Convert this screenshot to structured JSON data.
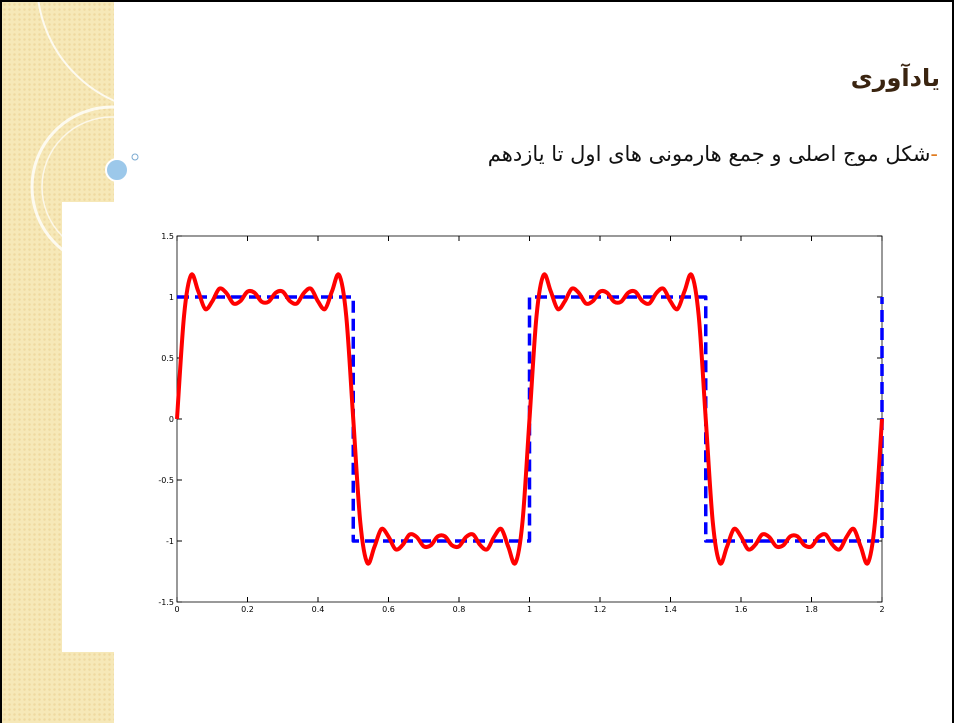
{
  "slide": {
    "title": "یادآوری",
    "bullet": "-",
    "text": "شکل موج اصلی و جمع هارمونی های اول تا یازدهم"
  },
  "chart_data": {
    "type": "line",
    "xlim": [
      0,
      2
    ],
    "ylim": [
      -1.5,
      1.5
    ],
    "xticks": [
      0,
      0.2,
      0.4,
      0.6,
      0.8,
      1,
      1.2,
      1.4,
      1.6,
      1.8,
      2
    ],
    "yticks": [
      -1.5,
      -1,
      -0.5,
      0,
      0.5,
      1,
      1.5
    ],
    "series": [
      {
        "color": "#0000ff",
        "linestyle": "dashed",
        "x": [
          0,
          0.5,
          0.5,
          1,
          1,
          1.5,
          1.5,
          2,
          2
        ],
        "values": [
          1,
          1,
          -1,
          -1,
          1,
          1,
          -1,
          -1,
          1
        ]
      },
      {
        "color": "#ff0000",
        "linestyle": "solid",
        "x": [
          0,
          0.02,
          0.04,
          0.06,
          0.08,
          0.1,
          0.12,
          0.14,
          0.16,
          0.18,
          0.2,
          0.22,
          0.24,
          0.26,
          0.28,
          0.3,
          0.32,
          0.34,
          0.36,
          0.38,
          0.4,
          0.42,
          0.44,
          0.46,
          0.48,
          0.5,
          0.52,
          0.54,
          0.56,
          0.58,
          0.6,
          0.62,
          0.64,
          0.66,
          0.68,
          0.7,
          0.72,
          0.74,
          0.76,
          0.78,
          0.8,
          0.82,
          0.84,
          0.86,
          0.88,
          0.9,
          0.92,
          0.94,
          0.96,
          0.98,
          1,
          1.02,
          1.04,
          1.06,
          1.08,
          1.1,
          1.12,
          1.14,
          1.16,
          1.18,
          1.2,
          1.22,
          1.24,
          1.26,
          1.28,
          1.3,
          1.32,
          1.34,
          1.36,
          1.38,
          1.4,
          1.42,
          1.44,
          1.46,
          1.48,
          1.5,
          1.52,
          1.54,
          1.56,
          1.58,
          1.6,
          1.62,
          1.64,
          1.66,
          1.68,
          1.7,
          1.72,
          1.74,
          1.76,
          1.78,
          1.8,
          1.82,
          1.84,
          1.86,
          1.88,
          1.9,
          1.92,
          1.94,
          1.96,
          1.98,
          2
        ],
        "values": [
          0,
          0.847,
          1.18,
          1.049,
          0.902,
          0.964,
          1.068,
          1.033,
          0.947,
          0.967,
          1.044,
          1.035,
          0.962,
          0.962,
          1.035,
          1.044,
          0.967,
          0.947,
          1.033,
          1.068,
          0.964,
          0.902,
          1.049,
          1.18,
          0.847,
          0,
          -0.847,
          -1.18,
          -1.049,
          -0.902,
          -0.964,
          -1.068,
          -1.033,
          -0.947,
          -0.967,
          -1.044,
          -1.035,
          -0.962,
          -0.962,
          -1.035,
          -1.044,
          -0.967,
          -0.947,
          -1.033,
          -1.068,
          -0.964,
          -0.902,
          -1.049,
          -1.18,
          -0.847,
          0,
          0.847,
          1.18,
          1.049,
          0.902,
          0.964,
          1.068,
          1.033,
          0.947,
          0.967,
          1.044,
          1.035,
          0.962,
          0.962,
          1.035,
          1.044,
          0.967,
          0.947,
          1.033,
          1.068,
          0.964,
          0.902,
          1.049,
          1.18,
          0.847,
          0,
          -0.847,
          -1.18,
          -1.049,
          -0.902,
          -0.964,
          -1.068,
          -1.033,
          -0.947,
          -0.967,
          -1.044,
          -1.035,
          -0.962,
          -0.962,
          -1.035,
          -1.044,
          -0.967,
          -0.947,
          -1.033,
          -1.068,
          -0.964,
          -0.902,
          -1.049,
          -1.18,
          -0.847,
          0
        ]
      }
    ]
  }
}
